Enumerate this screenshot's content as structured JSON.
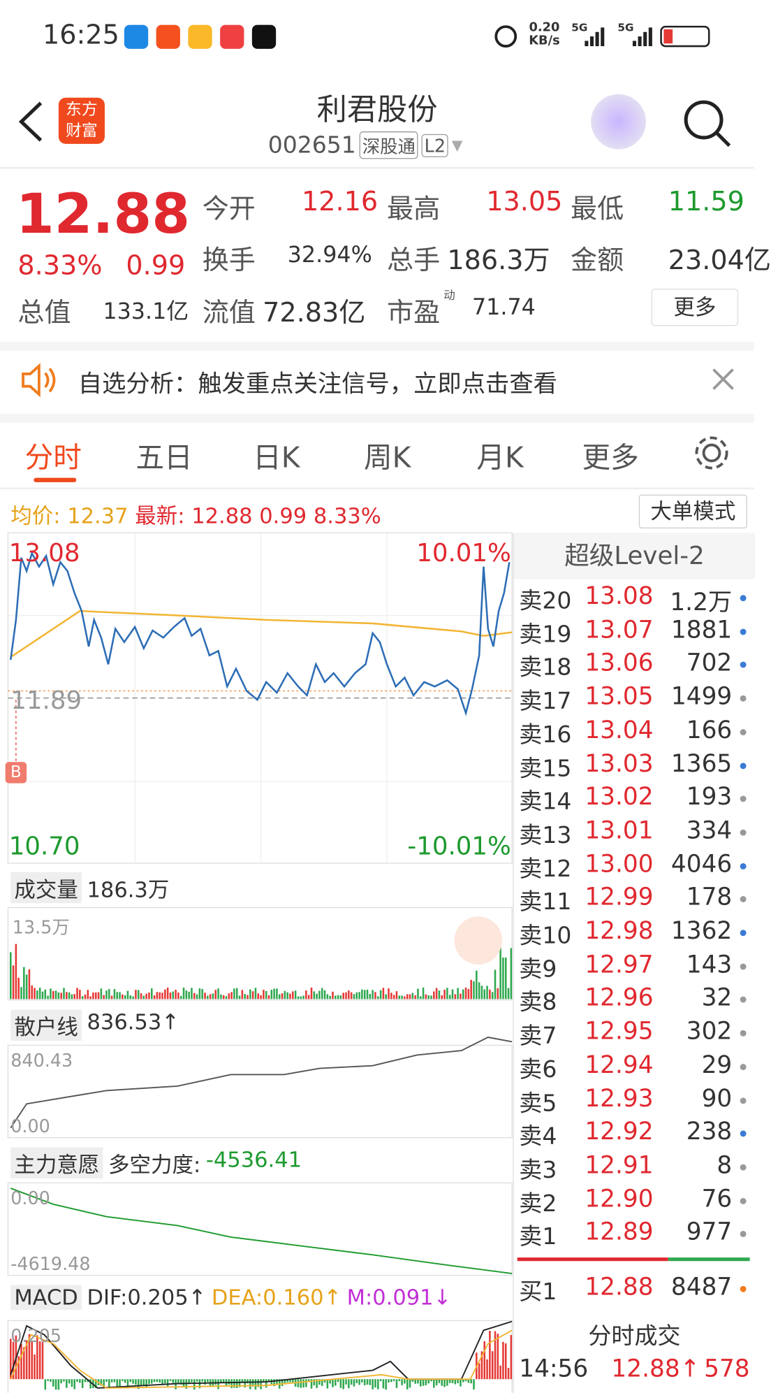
{
  "status": {
    "time": "16:25",
    "speed": "0.20",
    "speed_unit": "KB/s",
    "net1": "5G",
    "net2": "5G"
  },
  "header": {
    "logo": "东方财富",
    "title": "利君股份",
    "code": "002651",
    "tag1": "深股通",
    "tag2": "L2"
  },
  "quote": {
    "price": "12.88",
    "pct": "8.33%",
    "change": "0.99",
    "stats": [
      {
        "label": "今开",
        "value": "12.16",
        "color": "#e0282f"
      },
      {
        "label": "最高",
        "value": "13.05",
        "color": "#e0282f"
      },
      {
        "label": "最低",
        "value": "11.59",
        "color": "#1d9a2e"
      },
      {
        "label": "换手",
        "value": "32.94%",
        "color": "#333"
      },
      {
        "label": "总手",
        "value": "186.3万",
        "color": "#333"
      },
      {
        "label": "金额",
        "value": "23.04亿",
        "color": "#333"
      },
      {
        "label": "总值",
        "value": "133.1亿",
        "color": "#333"
      },
      {
        "label": "流值",
        "value": "72.83亿",
        "color": "#333"
      },
      {
        "label": "市盈",
        "value": "71.74",
        "color": "#333"
      }
    ],
    "pe_sup": "动",
    "more": "更多"
  },
  "banner": {
    "text": "自选分析：触发重点关注信号，立即点击查看"
  },
  "tabs": [
    "分时",
    "五日",
    "日K",
    "周K",
    "月K",
    "更多"
  ],
  "info": {
    "avg_label": "均价:",
    "avg": "12.37",
    "last_label": "最新:",
    "last": "12.88",
    "change": "0.99",
    "pct": "8.33%",
    "button": "大单模式"
  },
  "chart": {
    "high": "13.08",
    "high_pct": "10.01%",
    "prev": "11.89",
    "low": "10.70",
    "low_pct": "-10.01%",
    "marker": "B"
  },
  "panels": {
    "volume": {
      "name": "成交量",
      "value": "186.3万",
      "max": "13.5万"
    },
    "retail": {
      "name": "散户线",
      "value": "836.53↑",
      "max": "840.43",
      "min": "0.00"
    },
    "main": {
      "name": "主力意愿",
      "label": "多空力度:",
      "value": "-4536.41",
      "max": "0.00",
      "min": "-4619.48"
    },
    "macd": {
      "name": "MACD",
      "dif": "DIF:0.205↑",
      "dea": "DEA:0.160↑",
      "m": "M:0.091↓",
      "max": "0.205"
    }
  },
  "book": {
    "title": "超级Level-2",
    "sells": [
      [
        "卖20",
        "13.08",
        "1.2万",
        "#3a7bd5"
      ],
      [
        "卖19",
        "13.07",
        "1881",
        "#3a7bd5"
      ],
      [
        "卖18",
        "13.06",
        "702",
        "#3a7bd5"
      ],
      [
        "卖17",
        "13.05",
        "1499",
        "#999"
      ],
      [
        "卖16",
        "13.04",
        "166",
        "#999"
      ],
      [
        "卖15",
        "13.03",
        "1365",
        "#3a7bd5"
      ],
      [
        "卖14",
        "13.02",
        "193",
        "#999"
      ],
      [
        "卖13",
        "13.01",
        "334",
        "#999"
      ],
      [
        "卖12",
        "13.00",
        "4046",
        "#3a7bd5"
      ],
      [
        "卖11",
        "12.99",
        "178",
        "#999"
      ],
      [
        "卖10",
        "12.98",
        "1362",
        "#3a7bd5"
      ],
      [
        "卖9",
        "12.97",
        "143",
        "#999"
      ],
      [
        "卖8",
        "12.96",
        "32",
        "#999"
      ],
      [
        "卖7",
        "12.95",
        "302",
        "#999"
      ],
      [
        "卖6",
        "12.94",
        "29",
        "#999"
      ],
      [
        "卖5",
        "12.93",
        "90",
        "#999"
      ],
      [
        "卖4",
        "12.92",
        "238",
        "#3a7bd5"
      ],
      [
        "卖3",
        "12.91",
        "8",
        "#999"
      ],
      [
        "卖2",
        "12.90",
        "76",
        "#999"
      ],
      [
        "卖1",
        "12.89",
        "977",
        "#999"
      ]
    ],
    "buy": [
      "买1",
      "12.88",
      "8487",
      "#f07c1e"
    ],
    "trades_title": "分时成交",
    "trade": [
      "14:56",
      "12.88↑",
      "578"
    ]
  }
}
